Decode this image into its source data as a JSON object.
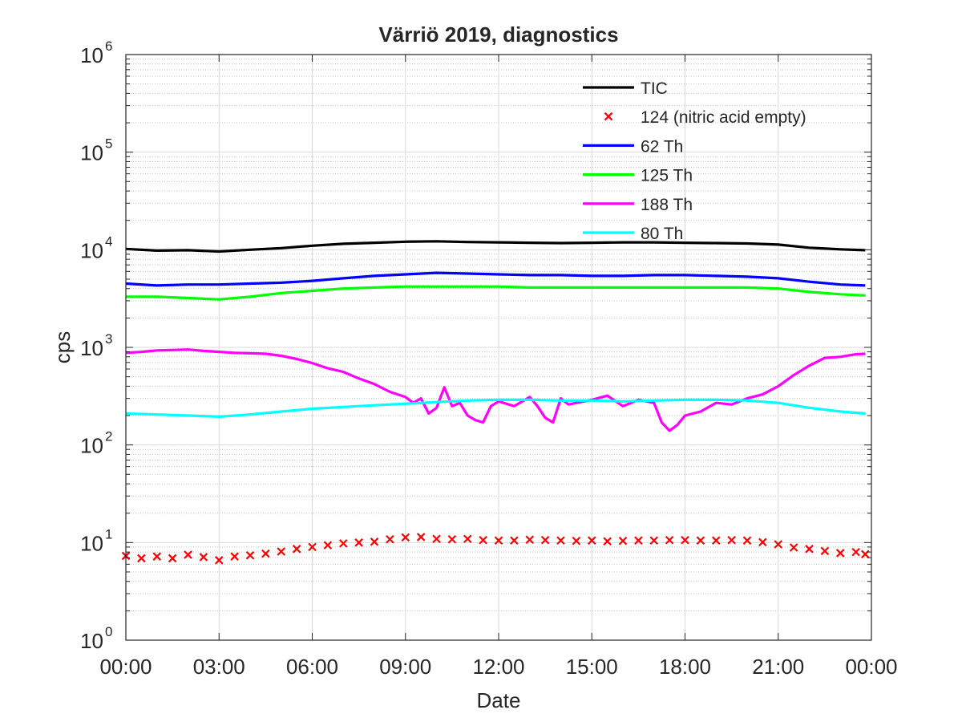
{
  "chart_data": {
    "type": "line",
    "title": "Värriö 2019, diagnostics",
    "xlabel": "Date",
    "ylabel": "cps",
    "yscale": "log",
    "ylim": [
      1,
      1000000
    ],
    "y_tick_labels": [
      {
        "base": "10",
        "exp": "0"
      },
      {
        "base": "10",
        "exp": "1"
      },
      {
        "base": "10",
        "exp": "2"
      },
      {
        "base": "10",
        "exp": "3"
      },
      {
        "base": "10",
        "exp": "4"
      },
      {
        "base": "10",
        "exp": "5"
      },
      {
        "base": "10",
        "exp": "6"
      }
    ],
    "xlim_hours": [
      0,
      24
    ],
    "x_tick_labels": [
      "00:00",
      "03:00",
      "06:00",
      "09:00",
      "12:00",
      "15:00",
      "18:00",
      "21:00",
      "00:00"
    ],
    "grid": true,
    "legend_position": "top-right",
    "series": [
      {
        "name": "TIC",
        "color": "#000000",
        "style": "line",
        "x": [
          0,
          1,
          2,
          3,
          4,
          5,
          6,
          7,
          8,
          9,
          10,
          11,
          12,
          13,
          14,
          15,
          16,
          17,
          18,
          19,
          20,
          21,
          22,
          23,
          23.8
        ],
        "y": [
          10200,
          9800,
          9900,
          9600,
          10000,
          10400,
          11000,
          11500,
          11800,
          12100,
          12200,
          12000,
          11900,
          11800,
          11700,
          11800,
          11900,
          11900,
          11800,
          11700,
          11600,
          11300,
          10500,
          10100,
          9900
        ]
      },
      {
        "name": "124 (nitric acid empty)",
        "color": "#ff0000",
        "style": "marker-x",
        "x": [
          0,
          0.5,
          1,
          1.5,
          2,
          2.5,
          3,
          3.5,
          4,
          4.5,
          5,
          5.5,
          6,
          6.5,
          7,
          7.5,
          8,
          8.5,
          9,
          9.5,
          10,
          10.5,
          11,
          11.5,
          12,
          12.5,
          13,
          13.5,
          14,
          14.5,
          15,
          15.5,
          16,
          16.5,
          17,
          17.5,
          18,
          18.5,
          19,
          19.5,
          20,
          20.5,
          21,
          21.5,
          22,
          22.5,
          23,
          23.5,
          23.8
        ],
        "y": [
          7.3,
          6.9,
          7.2,
          6.9,
          7.5,
          7.1,
          6.6,
          7.2,
          7.4,
          7.7,
          8.1,
          8.6,
          9.0,
          9.4,
          9.8,
          10.0,
          10.2,
          10.8,
          11.3,
          11.4,
          10.9,
          10.8,
          10.9,
          10.6,
          10.5,
          10.5,
          10.7,
          10.6,
          10.5,
          10.4,
          10.5,
          10.3,
          10.4,
          10.5,
          10.5,
          10.6,
          10.6,
          10.5,
          10.5,
          10.6,
          10.5,
          10.1,
          9.6,
          8.9,
          8.6,
          8.2,
          7.8,
          8.0,
          7.6
        ]
      },
      {
        "name": "62 Th",
        "color": "#0000ff",
        "style": "line",
        "x": [
          0,
          1,
          2,
          3,
          4,
          5,
          6,
          7,
          8,
          9,
          10,
          11,
          12,
          13,
          14,
          15,
          16,
          17,
          18,
          19,
          20,
          21,
          22,
          23,
          23.8
        ],
        "y": [
          4500,
          4300,
          4400,
          4400,
          4500,
          4600,
          4800,
          5100,
          5400,
          5600,
          5800,
          5700,
          5600,
          5500,
          5500,
          5400,
          5400,
          5500,
          5500,
          5400,
          5300,
          5100,
          4700,
          4400,
          4300
        ]
      },
      {
        "name": "125 Th",
        "color": "#00ff00",
        "style": "line",
        "x": [
          0,
          1,
          2,
          3,
          4,
          5,
          6,
          7,
          8,
          9,
          10,
          11,
          12,
          13,
          14,
          15,
          16,
          17,
          18,
          19,
          20,
          21,
          22,
          23,
          23.8
        ],
        "y": [
          3300,
          3300,
          3200,
          3100,
          3300,
          3600,
          3800,
          4000,
          4100,
          4200,
          4200,
          4200,
          4200,
          4100,
          4100,
          4100,
          4100,
          4100,
          4100,
          4100,
          4100,
          4000,
          3700,
          3500,
          3400
        ]
      },
      {
        "name": "188 Th",
        "color": "#ff00ff",
        "style": "line",
        "x": [
          0,
          0.5,
          1,
          1.5,
          2,
          2.5,
          3,
          3.5,
          4,
          4.5,
          5,
          5.5,
          6,
          6.5,
          7,
          7.5,
          8,
          8.5,
          9,
          9.25,
          9.5,
          9.75,
          10,
          10.25,
          10.5,
          10.75,
          11,
          11.25,
          11.5,
          11.75,
          12,
          12.5,
          13,
          13.25,
          13.5,
          13.75,
          14,
          14.25,
          14.5,
          15,
          15.5,
          16,
          16.5,
          17,
          17.25,
          17.5,
          17.75,
          18,
          18.5,
          19,
          19.5,
          20,
          20.5,
          21,
          21.5,
          22,
          22.5,
          23,
          23.5,
          23.8
        ],
        "y": [
          880,
          900,
          930,
          940,
          950,
          920,
          900,
          880,
          870,
          860,
          820,
          760,
          690,
          610,
          560,
          480,
          420,
          350,
          310,
          270,
          300,
          210,
          240,
          390,
          250,
          270,
          200,
          180,
          170,
          250,
          280,
          250,
          310,
          250,
          190,
          170,
          300,
          260,
          270,
          290,
          320,
          250,
          290,
          270,
          170,
          140,
          160,
          200,
          220,
          270,
          260,
          300,
          330,
          400,
          520,
          650,
          780,
          800,
          850,
          860
        ]
      },
      {
        "name": "80 Th",
        "color": "#00ffff",
        "style": "line",
        "x": [
          0,
          1,
          2,
          3,
          4,
          5,
          6,
          7,
          8,
          9,
          10,
          11,
          12,
          13,
          14,
          15,
          16,
          17,
          18,
          19,
          20,
          21,
          22,
          23,
          23.8
        ],
        "y": [
          210,
          205,
          200,
          195,
          205,
          220,
          235,
          245,
          255,
          265,
          275,
          285,
          290,
          290,
          285,
          285,
          280,
          285,
          290,
          290,
          285,
          270,
          240,
          220,
          210
        ]
      }
    ]
  }
}
